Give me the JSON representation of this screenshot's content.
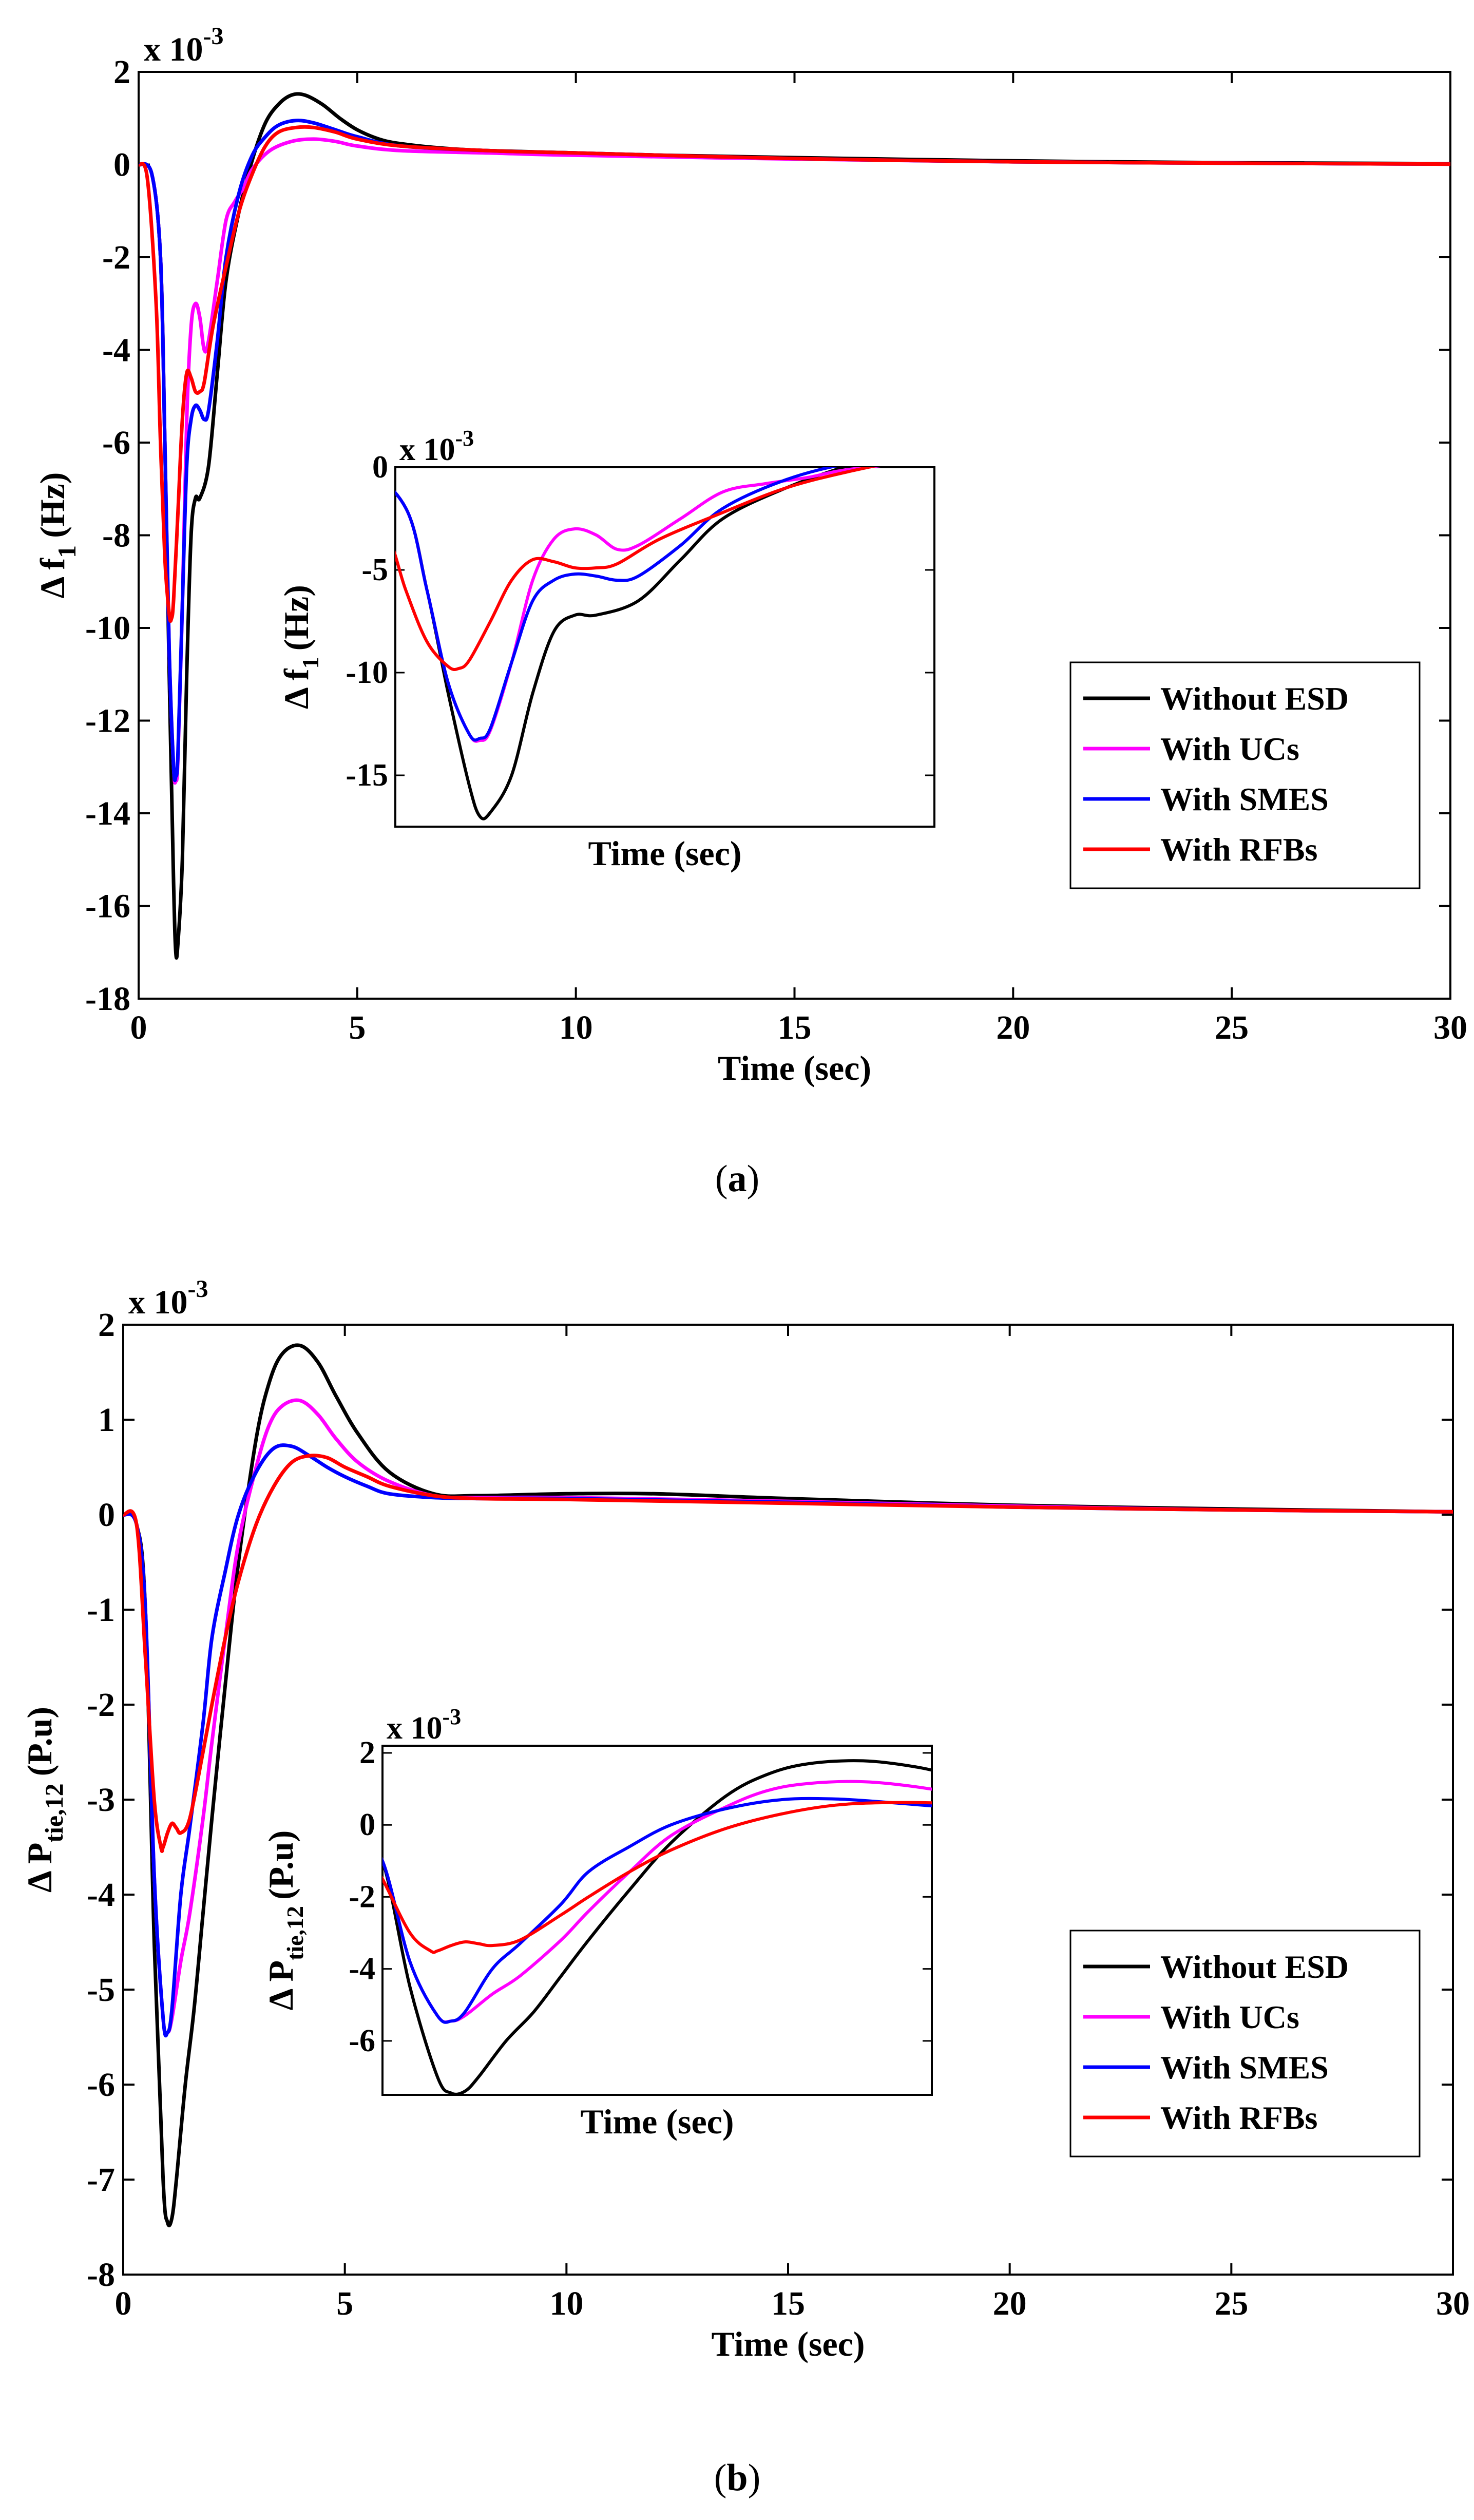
{
  "chart_data": [
    {
      "type": "line",
      "caption": "a",
      "xlabel": "Time (sec)",
      "ylabel_main": "Δ f",
      "ylabel_sub": "1",
      "ylabel_unit": "(Hz)",
      "exponent_prefix": "x 10",
      "exponent_power": "-3",
      "xlim": [
        0,
        30
      ],
      "ylim": [
        -18,
        2
      ],
      "xticks": [
        0,
        5,
        10,
        15,
        20,
        25,
        30
      ],
      "yticks": [
        2,
        0,
        -2,
        -4,
        -6,
        -8,
        -10,
        -12,
        -14,
        -16,
        -18
      ],
      "grid": false,
      "legend_position": "lower-right",
      "series": [
        {
          "name": "Without ESD",
          "color": "#000000",
          "x": [
            0,
            0.3,
            0.5,
            0.6,
            0.7,
            0.8,
            0.85,
            0.9,
            1.0,
            1.1,
            1.2,
            1.3,
            1.4,
            1.6,
            1.8,
            2.0,
            2.3,
            2.6,
            2.9,
            3.2,
            3.5,
            3.8,
            4.2,
            4.6,
            5.0,
            5.5,
            6.0,
            7.0,
            8.0,
            10.0,
            12.0,
            15.0,
            20.0,
            25.0,
            30.0
          ],
          "y": [
            0,
            -0.2,
            -2.0,
            -6.0,
            -11.0,
            -15.5,
            -17.0,
            -16.8,
            -15.0,
            -11.0,
            -8.0,
            -7.2,
            -7.2,
            -6.5,
            -4.5,
            -2.5,
            -1.0,
            0.1,
            0.9,
            1.3,
            1.5,
            1.5,
            1.3,
            1.0,
            0.75,
            0.55,
            0.45,
            0.35,
            0.3,
            0.25,
            0.2,
            0.15,
            0.08,
            0.04,
            0.02
          ]
        },
        {
          "name": "With UCs",
          "color": "#ff00ff",
          "x": [
            0,
            0.3,
            0.5,
            0.6,
            0.7,
            0.8,
            0.85,
            0.9,
            1.0,
            1.1,
            1.2,
            1.3,
            1.4,
            1.5,
            1.6,
            1.8,
            2.0,
            2.2,
            2.4,
            2.6,
            3.0,
            3.5,
            4.0,
            4.5,
            5.0,
            6.0,
            8.0,
            10.0,
            15.0,
            20.0,
            25.0,
            30.0
          ],
          "y": [
            0,
            -0.2,
            -2.0,
            -6.0,
            -10.5,
            -13.0,
            -13.3,
            -12.8,
            -9.5,
            -5.5,
            -3.5,
            -3.0,
            -3.3,
            -4.0,
            -3.8,
            -2.5,
            -1.2,
            -0.8,
            -0.5,
            -0.1,
            0.3,
            0.5,
            0.55,
            0.5,
            0.4,
            0.3,
            0.25,
            0.2,
            0.12,
            0.06,
            0.03,
            0.01
          ]
        },
        {
          "name": "With SMES",
          "color": "#0000ff",
          "x": [
            0,
            0.3,
            0.5,
            0.6,
            0.7,
            0.8,
            0.85,
            0.9,
            1.0,
            1.1,
            1.2,
            1.3,
            1.4,
            1.5,
            1.6,
            1.8,
            2.0,
            2.3,
            2.6,
            2.9,
            3.2,
            3.6,
            4.0,
            4.5,
            5.0,
            6.0,
            8.0,
            10.0,
            15.0,
            20.0,
            25.0,
            30.0
          ],
          "y": [
            0,
            -0.2,
            -2.0,
            -6.0,
            -10.5,
            -13.0,
            -13.2,
            -12.7,
            -9.5,
            -6.5,
            -5.5,
            -5.2,
            -5.3,
            -5.5,
            -5.3,
            -3.8,
            -2.0,
            -0.6,
            0.2,
            0.6,
            0.85,
            0.95,
            0.9,
            0.75,
            0.6,
            0.4,
            0.3,
            0.25,
            0.13,
            0.06,
            0.03,
            0.01
          ]
        },
        {
          "name": "With RFBs",
          "color": "#ff0000",
          "x": [
            0,
            0.2,
            0.4,
            0.5,
            0.6,
            0.7,
            0.75,
            0.8,
            0.9,
            1.0,
            1.1,
            1.2,
            1.3,
            1.4,
            1.5,
            1.7,
            2.0,
            2.3,
            2.6,
            2.9,
            3.2,
            3.6,
            4.0,
            4.5,
            5.0,
            6.0,
            8.0,
            10.0,
            15.0,
            20.0,
            25.0,
            30.0
          ],
          "y": [
            0,
            -0.3,
            -3.0,
            -6.0,
            -8.5,
            -9.7,
            -9.8,
            -9.4,
            -7.5,
            -5.5,
            -4.5,
            -4.6,
            -4.9,
            -4.9,
            -4.7,
            -3.5,
            -2.2,
            -1.0,
            -0.2,
            0.4,
            0.7,
            0.8,
            0.8,
            0.7,
            0.55,
            0.4,
            0.3,
            0.25,
            0.13,
            0.06,
            0.03,
            0.01
          ]
        }
      ],
      "inset": {
        "xlabel": "Time (sec)",
        "ylabel_main": "Δ f",
        "ylabel_sub": "1",
        "ylabel_unit": "(Hz)",
        "exponent_prefix": "x 10",
        "exponent_power": "-3",
        "xlim": [
          0.45,
          3.0
        ],
        "ylim": [
          -17.5,
          0
        ],
        "yticks": [
          0,
          -5,
          -10,
          -15
        ]
      }
    },
    {
      "type": "line",
      "caption": "b",
      "xlabel": "Time (sec)",
      "ylabel_main": "Δ P",
      "ylabel_sub": "tie,12",
      "ylabel_unit": "(P.u)",
      "exponent_prefix": "x 10",
      "exponent_power": "-3",
      "xlim": [
        0,
        30
      ],
      "ylim": [
        -8,
        2
      ],
      "xticks": [
        0,
        5,
        10,
        15,
        20,
        25,
        30
      ],
      "yticks": [
        2,
        1,
        0,
        -1,
        -2,
        -3,
        -4,
        -5,
        -6,
        -7,
        -8
      ],
      "grid": false,
      "legend_position": "lower-right",
      "series": [
        {
          "name": "Without ESD",
          "color": "#000000",
          "x": [
            0,
            0.3,
            0.5,
            0.7,
            0.9,
            1.0,
            1.1,
            1.2,
            1.4,
            1.6,
            1.8,
            2.0,
            2.3,
            2.6,
            3.0,
            3.3,
            3.6,
            4.0,
            4.4,
            4.8,
            5.3,
            6.0,
            7.0,
            8.0,
            10.0,
            12.0,
            15.0,
            20.0,
            25.0,
            30.0
          ],
          "y": [
            0,
            -0.1,
            -1.0,
            -4.5,
            -7.0,
            -7.45,
            -7.4,
            -7.0,
            -6.0,
            -5.2,
            -4.2,
            -3.2,
            -1.8,
            -0.5,
            0.8,
            1.4,
            1.7,
            1.78,
            1.6,
            1.25,
            0.85,
            0.45,
            0.22,
            0.2,
            0.22,
            0.22,
            0.17,
            0.1,
            0.06,
            0.03
          ]
        },
        {
          "name": "With UCs",
          "color": "#ff00ff",
          "x": [
            0,
            0.3,
            0.5,
            0.7,
            0.9,
            1.0,
            1.1,
            1.3,
            1.5,
            1.8,
            2.0,
            2.3,
            2.6,
            3.0,
            3.3,
            3.6,
            4.0,
            4.4,
            4.8,
            5.3,
            6.0,
            7.0,
            8.0,
            10.0,
            15.0,
            20.0,
            25.0,
            30.0
          ],
          "y": [
            0,
            -0.1,
            -1.0,
            -3.8,
            -5.3,
            -5.45,
            -5.3,
            -4.7,
            -4.2,
            -3.2,
            -2.4,
            -1.3,
            -0.3,
            0.5,
            0.95,
            1.15,
            1.2,
            1.05,
            0.8,
            0.55,
            0.35,
            0.2,
            0.18,
            0.18,
            0.14,
            0.09,
            0.05,
            0.03
          ]
        },
        {
          "name": "With SMES",
          "color": "#0000ff",
          "x": [
            0,
            0.3,
            0.5,
            0.7,
            0.9,
            1.0,
            1.1,
            1.3,
            1.5,
            1.8,
            2.0,
            2.3,
            2.6,
            3.0,
            3.4,
            3.8,
            4.2,
            4.6,
            5.0,
            5.5,
            6.0,
            7.0,
            8.0,
            10.0,
            15.0,
            20.0,
            25.0,
            30.0
          ],
          "y": [
            0,
            -0.1,
            -1.0,
            -3.8,
            -5.3,
            -5.45,
            -5.2,
            -4.0,
            -3.3,
            -2.2,
            -1.3,
            -0.6,
            0.0,
            0.45,
            0.7,
            0.72,
            0.62,
            0.5,
            0.4,
            0.3,
            0.22,
            0.18,
            0.17,
            0.17,
            0.13,
            0.08,
            0.05,
            0.03
          ]
        },
        {
          "name": "With RFBs",
          "color": "#ff0000",
          "x": [
            0,
            0.3,
            0.5,
            0.7,
            0.85,
            0.9,
            1.0,
            1.1,
            1.2,
            1.3,
            1.5,
            1.8,
            2.0,
            2.3,
            2.6,
            3.0,
            3.4,
            3.8,
            4.2,
            4.6,
            5.0,
            5.5,
            6.0,
            7.0,
            8.0,
            10.0,
            15.0,
            20.0,
            25.0,
            30.0
          ],
          "y": [
            0,
            -0.1,
            -1.5,
            -3.0,
            -3.5,
            -3.5,
            -3.35,
            -3.25,
            -3.3,
            -3.35,
            -3.2,
            -2.5,
            -2.0,
            -1.3,
            -0.7,
            -0.1,
            0.3,
            0.55,
            0.62,
            0.6,
            0.5,
            0.4,
            0.3,
            0.2,
            0.17,
            0.16,
            0.12,
            0.08,
            0.05,
            0.03
          ]
        }
      ],
      "inset": {
        "xlabel": "Time (sec)",
        "ylabel_main": "Δ P",
        "ylabel_sub": "tie,12",
        "ylabel_unit": "(P.u)",
        "exponent_prefix": "x 10",
        "exponent_power": "-3",
        "xlim": [
          0.5,
          4.5
        ],
        "ylim": [
          -7.5,
          2.2
        ],
        "yticks": [
          2,
          0,
          -2,
          -4,
          -6
        ]
      }
    }
  ]
}
